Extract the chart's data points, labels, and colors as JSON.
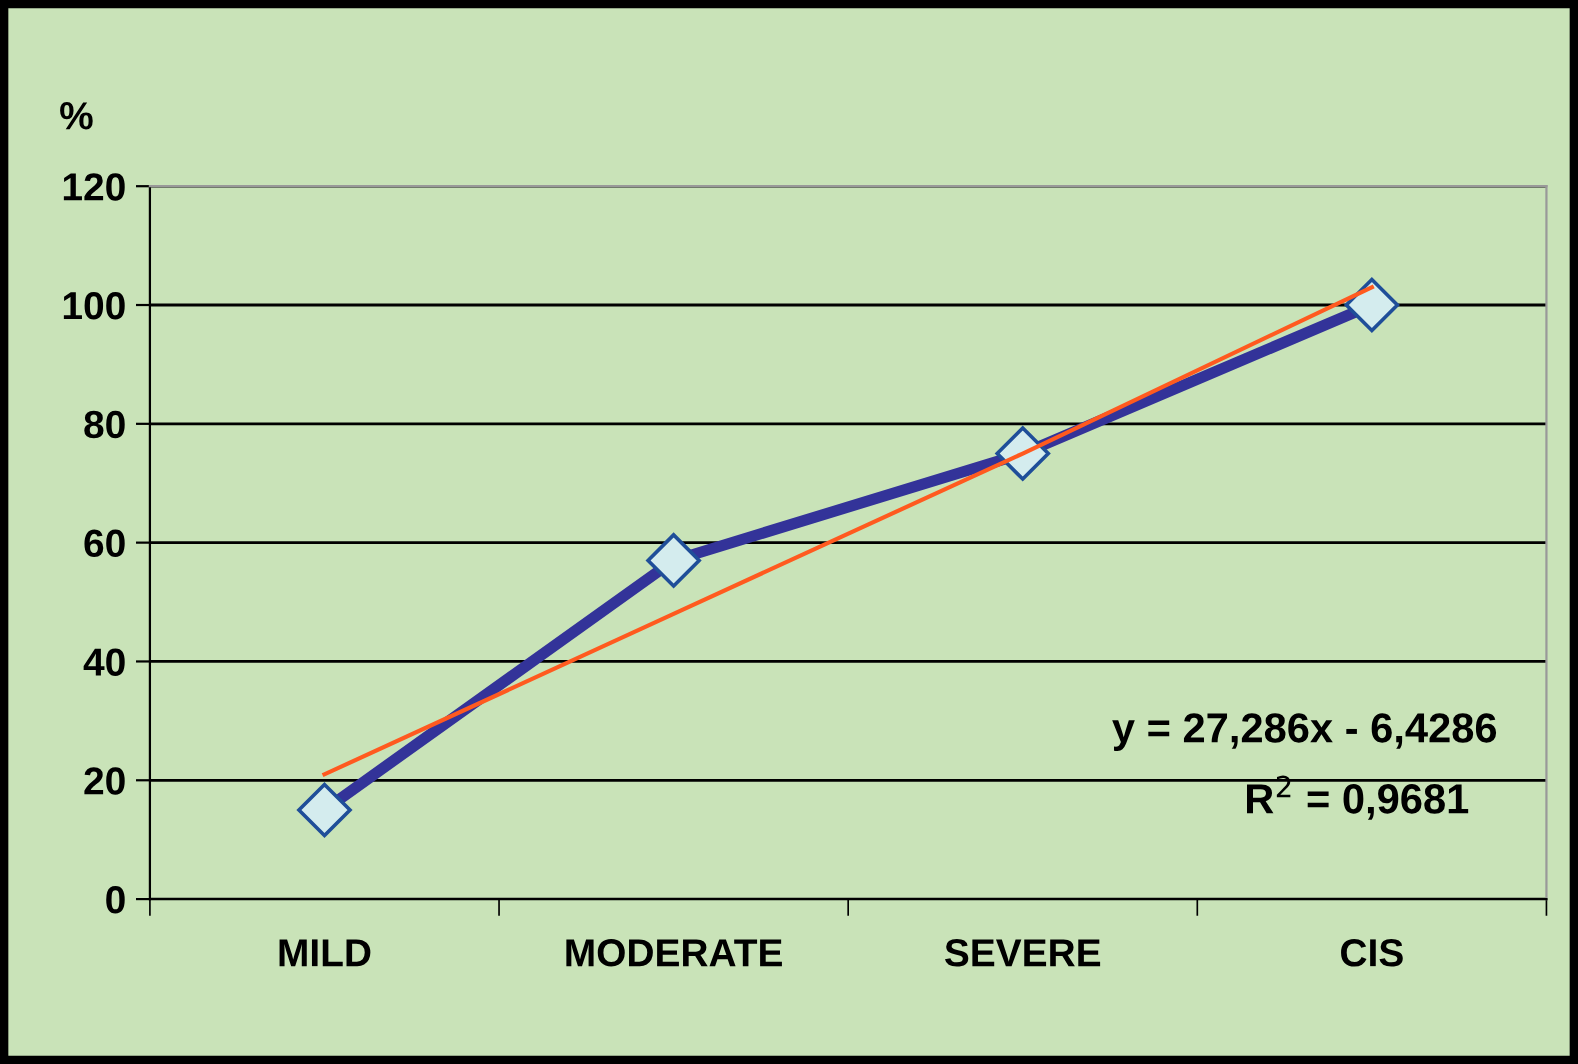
{
  "chart_data": {
    "type": "line",
    "ylabel": "%",
    "categories": [
      "MILD",
      "MODERATE",
      "SEVERE",
      "CIS"
    ],
    "series": [
      {
        "color": "#333399",
        "values": [
          15,
          57,
          75,
          100
        ],
        "marker": "diamond"
      },
      {
        "color": "#ff5a1f",
        "values": [
          21,
          48,
          75,
          103
        ],
        "marker": "none"
      }
    ],
    "annotations": [
      "y = 27,286x - 6,4286",
      "R$^{2}$ = 0,9681"
    ],
    "ylim": [
      0,
      120
    ],
    "yticks": [
      0,
      20,
      40,
      60,
      80,
      100,
      120
    ],
    "grid": "y",
    "legend": false
  }
}
